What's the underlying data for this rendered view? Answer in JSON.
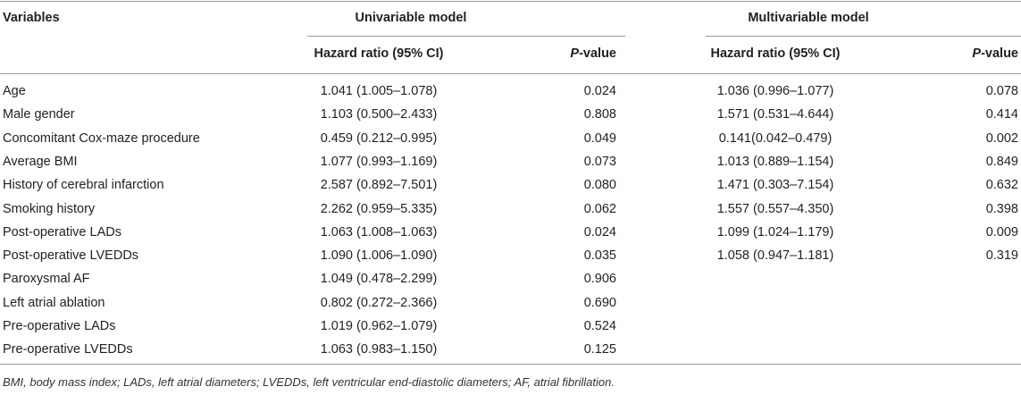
{
  "header": {
    "variables": "Variables",
    "groups": [
      "Univariable model",
      "Multivariable model"
    ],
    "columns": [
      "Hazard ratio (95% CI)",
      "P-value",
      "Hazard ratio (95% CI)",
      "P-value"
    ]
  },
  "table": {
    "rows": [
      [
        "Age",
        "1.041 (1.005–1.078)",
        "0.024",
        "1.036 (0.996–1.077)",
        "0.078"
      ],
      [
        "Male gender",
        "1.103 (0.500–2.433)",
        "0.808",
        "1.571 (0.531–4.644)",
        "0.414"
      ],
      [
        "Concomitant Cox-maze procedure",
        "0.459 (0.212–0.995)",
        "0.049",
        "0.141(0.042–0.479)",
        "0.002"
      ],
      [
        "Average BMI",
        "1.077 (0.993–1.169)",
        "0.073",
        "1.013 (0.889–1.154)",
        "0.849"
      ],
      [
        "History of cerebral infarction",
        "2.587 (0.892–7.501)",
        "0.080",
        "1.471 (0.303–7.154)",
        "0.632"
      ],
      [
        "Smoking history",
        "2.262 (0.959–5.335)",
        "0.062",
        "1.557 (0.557–4.350)",
        "0.398"
      ],
      [
        "Post-operative LADs",
        "1.063 (1.008–1.063)",
        "0.024",
        "1.099 (1.024–1.179)",
        "0.009"
      ],
      [
        "Post-operative LVEDDs",
        "1.090 (1.006–1.090)",
        "0.035",
        "1.058 (0.947–1.181)",
        "0.319"
      ],
      [
        "Paroxysmal AF",
        "1.049 (0.478–2.299)",
        "0.906"
      ],
      [
        "Left atrial ablation",
        "0.802 (0.272–2.366)",
        "0.690"
      ],
      [
        "Pre-operative LADs",
        "1.019 (0.962–1.079)",
        "0.524"
      ],
      [
        "Pre-operative LVEDDs",
        "1.063 (0.983–1.150)",
        "0.125"
      ]
    ]
  },
  "footnote": "BMI, body mass index; LADs, left atrial diameters; LVEDDs, left ventricular end-diastolic diameters; AF, atrial fibrillation."
}
